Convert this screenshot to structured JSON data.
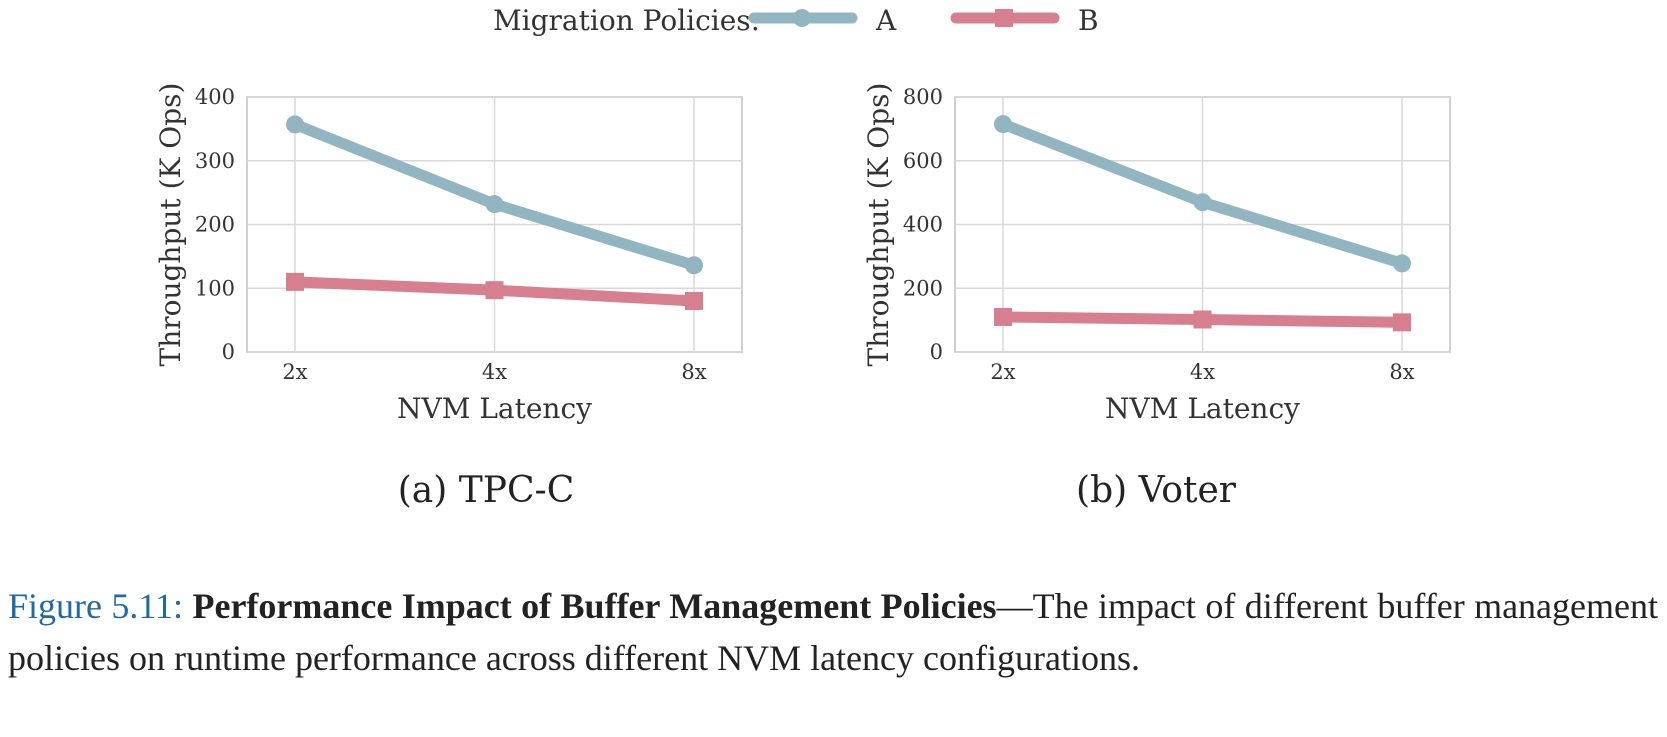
{
  "legend": {
    "title": "Migration Policies:",
    "items": [
      {
        "label": "A",
        "color": "#92b5c2",
        "marker": "circle"
      },
      {
        "label": "B",
        "color": "#d77f8e",
        "marker": "square"
      }
    ]
  },
  "chart_data": [
    {
      "type": "line",
      "subcaption": "(a) TPC-C",
      "xlabel": "NVM Latency",
      "ylabel": "Throughput (K Ops)",
      "categories": [
        "2x",
        "4x",
        "8x"
      ],
      "ylim": [
        0,
        400
      ],
      "yticks": [
        0,
        100,
        200,
        300,
        400
      ],
      "grid": true,
      "series": [
        {
          "name": "A",
          "values": [
            357,
            232,
            136
          ]
        },
        {
          "name": "B",
          "values": [
            110,
            97,
            80
          ]
        }
      ]
    },
    {
      "type": "line",
      "subcaption": "(b) Voter",
      "xlabel": "NVM Latency",
      "ylabel": "Throughput (K Ops)",
      "categories": [
        "2x",
        "4x",
        "8x"
      ],
      "ylim": [
        0,
        800
      ],
      "yticks": [
        0,
        200,
        400,
        600,
        800
      ],
      "grid": true,
      "series": [
        {
          "name": "A",
          "values": [
            715,
            470,
            278
          ]
        },
        {
          "name": "B",
          "values": [
            110,
            102,
            93
          ]
        }
      ]
    }
  ],
  "caption": {
    "label": "Figure 5.11:",
    "title": "Performance Impact of Buffer Management Policies",
    "text": "—The impact of different buffer management policies on runtime performance across different NVM latency configurations."
  }
}
